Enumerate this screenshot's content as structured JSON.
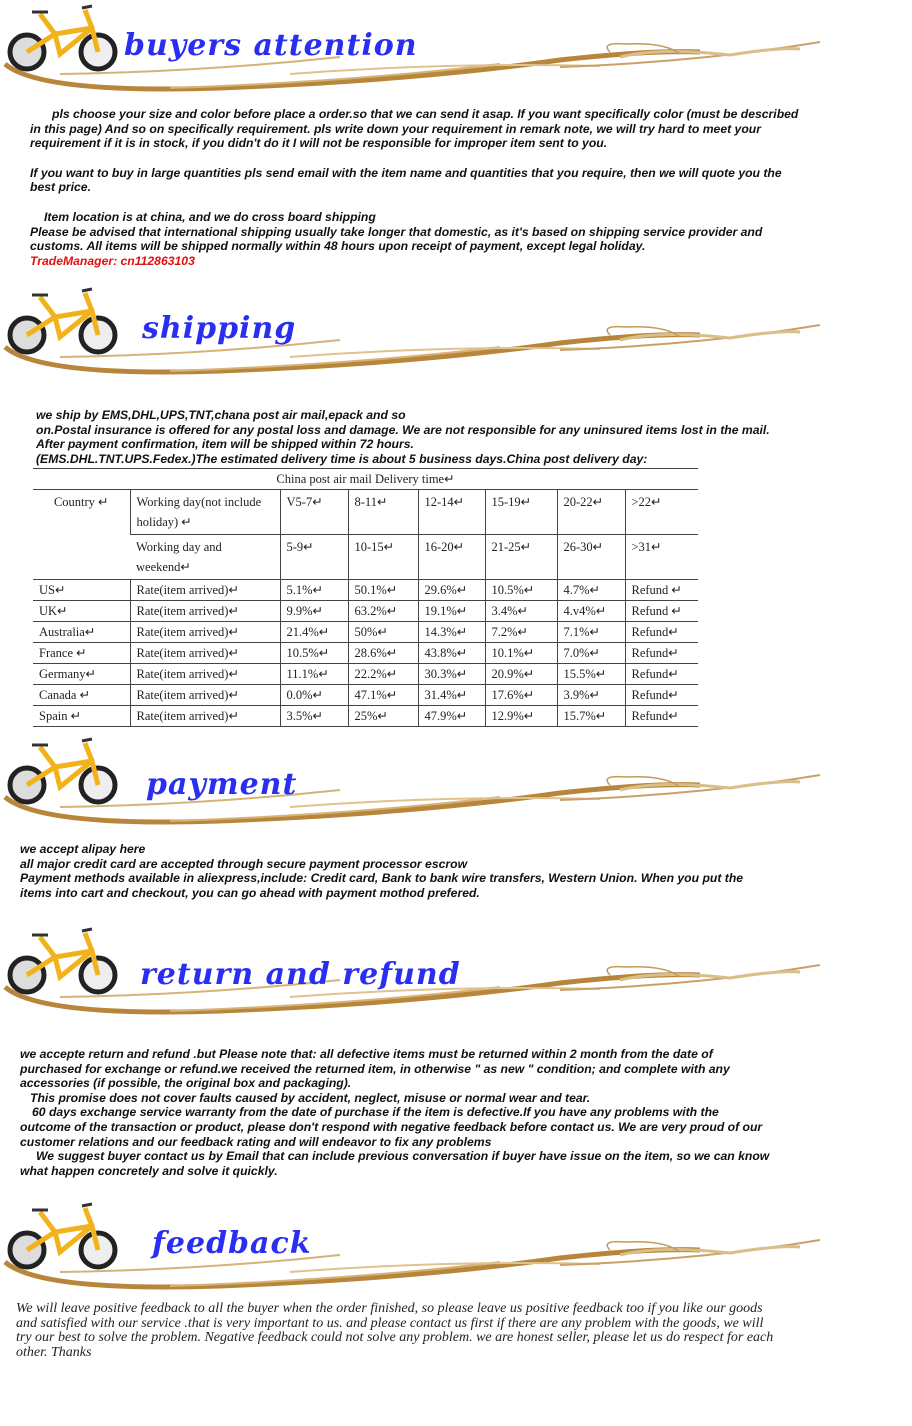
{
  "sections": {
    "buyers": {
      "title": "buyers attention"
    },
    "shipping": {
      "title": "shipping"
    },
    "payment": {
      "title": "payment"
    },
    "returns": {
      "title": "return and refund"
    },
    "feedback": {
      "title": "feedback"
    }
  },
  "buyers_text": {
    "p1": "pls choose your size and color before place a  order.so that we can send it asap. If you want specifically color (must be described in this page) And so on specifically requirement. pls write down your requirement in remark note, we will try hard to meet your requirement if it is in stock, if you didn't do it I will not be responsible for improper item sent to you.",
    "p2": "If you want to buy in large quantities pls send email with the item name and quantities that you require, then we will quote you the best price.",
    "p3": "Item location is at china, and we do cross board shipping",
    "p4": "Please be advised that international shipping usually take longer that domestic, as it's based on shipping service provider and customs. All items will be shipped normally within 48 hours upon receipt of payment, except legal holiday.",
    "trade_manager": "TradeManager:  cn112863103"
  },
  "shipping_text": {
    "l1": "we ship by EMS,DHL,UPS,TNT,chana post air mail,epack and so",
    "l2": "on.Postal insurance is offered for any postal loss and damage. We are not responsible for any uninsured items lost in the mail.",
    "l3": "After payment confirmation, item will be shipped within 72 hours.",
    "l4": "(EMS.DHL.TNT.UPS.Fedex.)The estimated delivery time is about 5 business days.China post delivery day:"
  },
  "delivery_table": {
    "title": "China post air mail Delivery time↵",
    "country_header": "Country ↵",
    "header_row1": [
      "Working day(not include holiday) ↵",
      "V5-7↵",
      "8-11↵",
      "12-14↵",
      "15-19↵",
      "20-22↵",
      ">22↵"
    ],
    "header_row2": [
      "Working day and weekend↵",
      "5-9↵",
      "10-15↵",
      "16-20↵",
      "21-25↵",
      "26-30↵",
      ">31↵"
    ],
    "rows": [
      [
        "US↵",
        "Rate(item arrived)↵",
        "5.1%↵",
        "50.1%↵",
        "29.6%↵",
        "10.5%↵",
        "4.7%↵",
        "Refund ↵"
      ],
      [
        "UK↵",
        "Rate(item arrived)↵",
        "9.9%↵",
        "63.2%↵",
        "19.1%↵",
        "3.4%↵",
        "4.v4%↵",
        "Refund ↵"
      ],
      [
        "Australia↵",
        "Rate(item arrived)↵",
        "21.4%↵",
        "50%↵",
        "14.3%↵",
        "7.2%↵",
        "7.1%↵",
        "Refund↵"
      ],
      [
        "France ↵",
        "Rate(item arrived)↵",
        "10.5%↵",
        "28.6%↵",
        "43.8%↵",
        "10.1%↵",
        "7.0%↵",
        "Refund↵"
      ],
      [
        "Germany↵",
        "Rate(item arrived)↵",
        "11.1%↵",
        "22.2%↵",
        "30.3%↵",
        "20.9%↵",
        "15.5%↵",
        "Refund↵"
      ],
      [
        "Canada ↵",
        "Rate(item arrived)↵",
        "0.0%↵",
        "47.1%↵",
        "31.4%↵",
        "17.6%↵",
        "3.9%↵",
        "Refund↵"
      ],
      [
        "Spain ↵",
        "Rate(item arrived)↵",
        "3.5%↵",
        "25%↵",
        "47.9%↵",
        "12.9%↵",
        "15.7%↵",
        "Refund↵"
      ]
    ]
  },
  "payment_text": {
    "l1": "we accept alipay here",
    "l2": "all major credit card are accepted through secure payment processor escrow",
    "l3": "Payment methods available in aliexpress,include:  Credit card, Bank to bank wire transfers, Western Union. When you put the items into cart and checkout, you can go ahead with payment mothod prefered."
  },
  "returns_text": {
    "p1": "we accepte return and refund .but Please note that:  all defective items must be returned within 2 month from the date of purchased for exchange or refund.we received the returned item, in otherwise \" as new \" condition; and complete with any accessories (if possible, the original box and packaging).",
    "p2": "This promise does not cover faults caused by accident, neglect, misuse or normal wear and tear.",
    "p3": "60 days exchange service warranty from the date of purchase if the item is defective.If you have any problems with the outcome of the transaction or product, please don't respond with negative feedback before contact us. We are very proud of our customer relations and our feedback rating and will endeavor to fix any problems",
    "p4": "We suggest buyer contact us by Email that can include previous conversation if buyer have issue on the item, so we can know what happen concretely and solve it quickly."
  },
  "feedback_text": "We will leave positive feedback to all the buyer when the order finished, so please leave us positive feedback too if you like our goods and satisfied with our service .that is very important to us. and please contact us first if there are any problem with the goods, we will try our best to solve the problem. Negative feedback could not solve any problem. we are honest seller, please let us do respect for each other. Thanks",
  "colors": {
    "title": "#2a2ef0",
    "accent_red": "#e01010",
    "bike": "#f2b21b",
    "swoosh": "#c89a4a"
  }
}
